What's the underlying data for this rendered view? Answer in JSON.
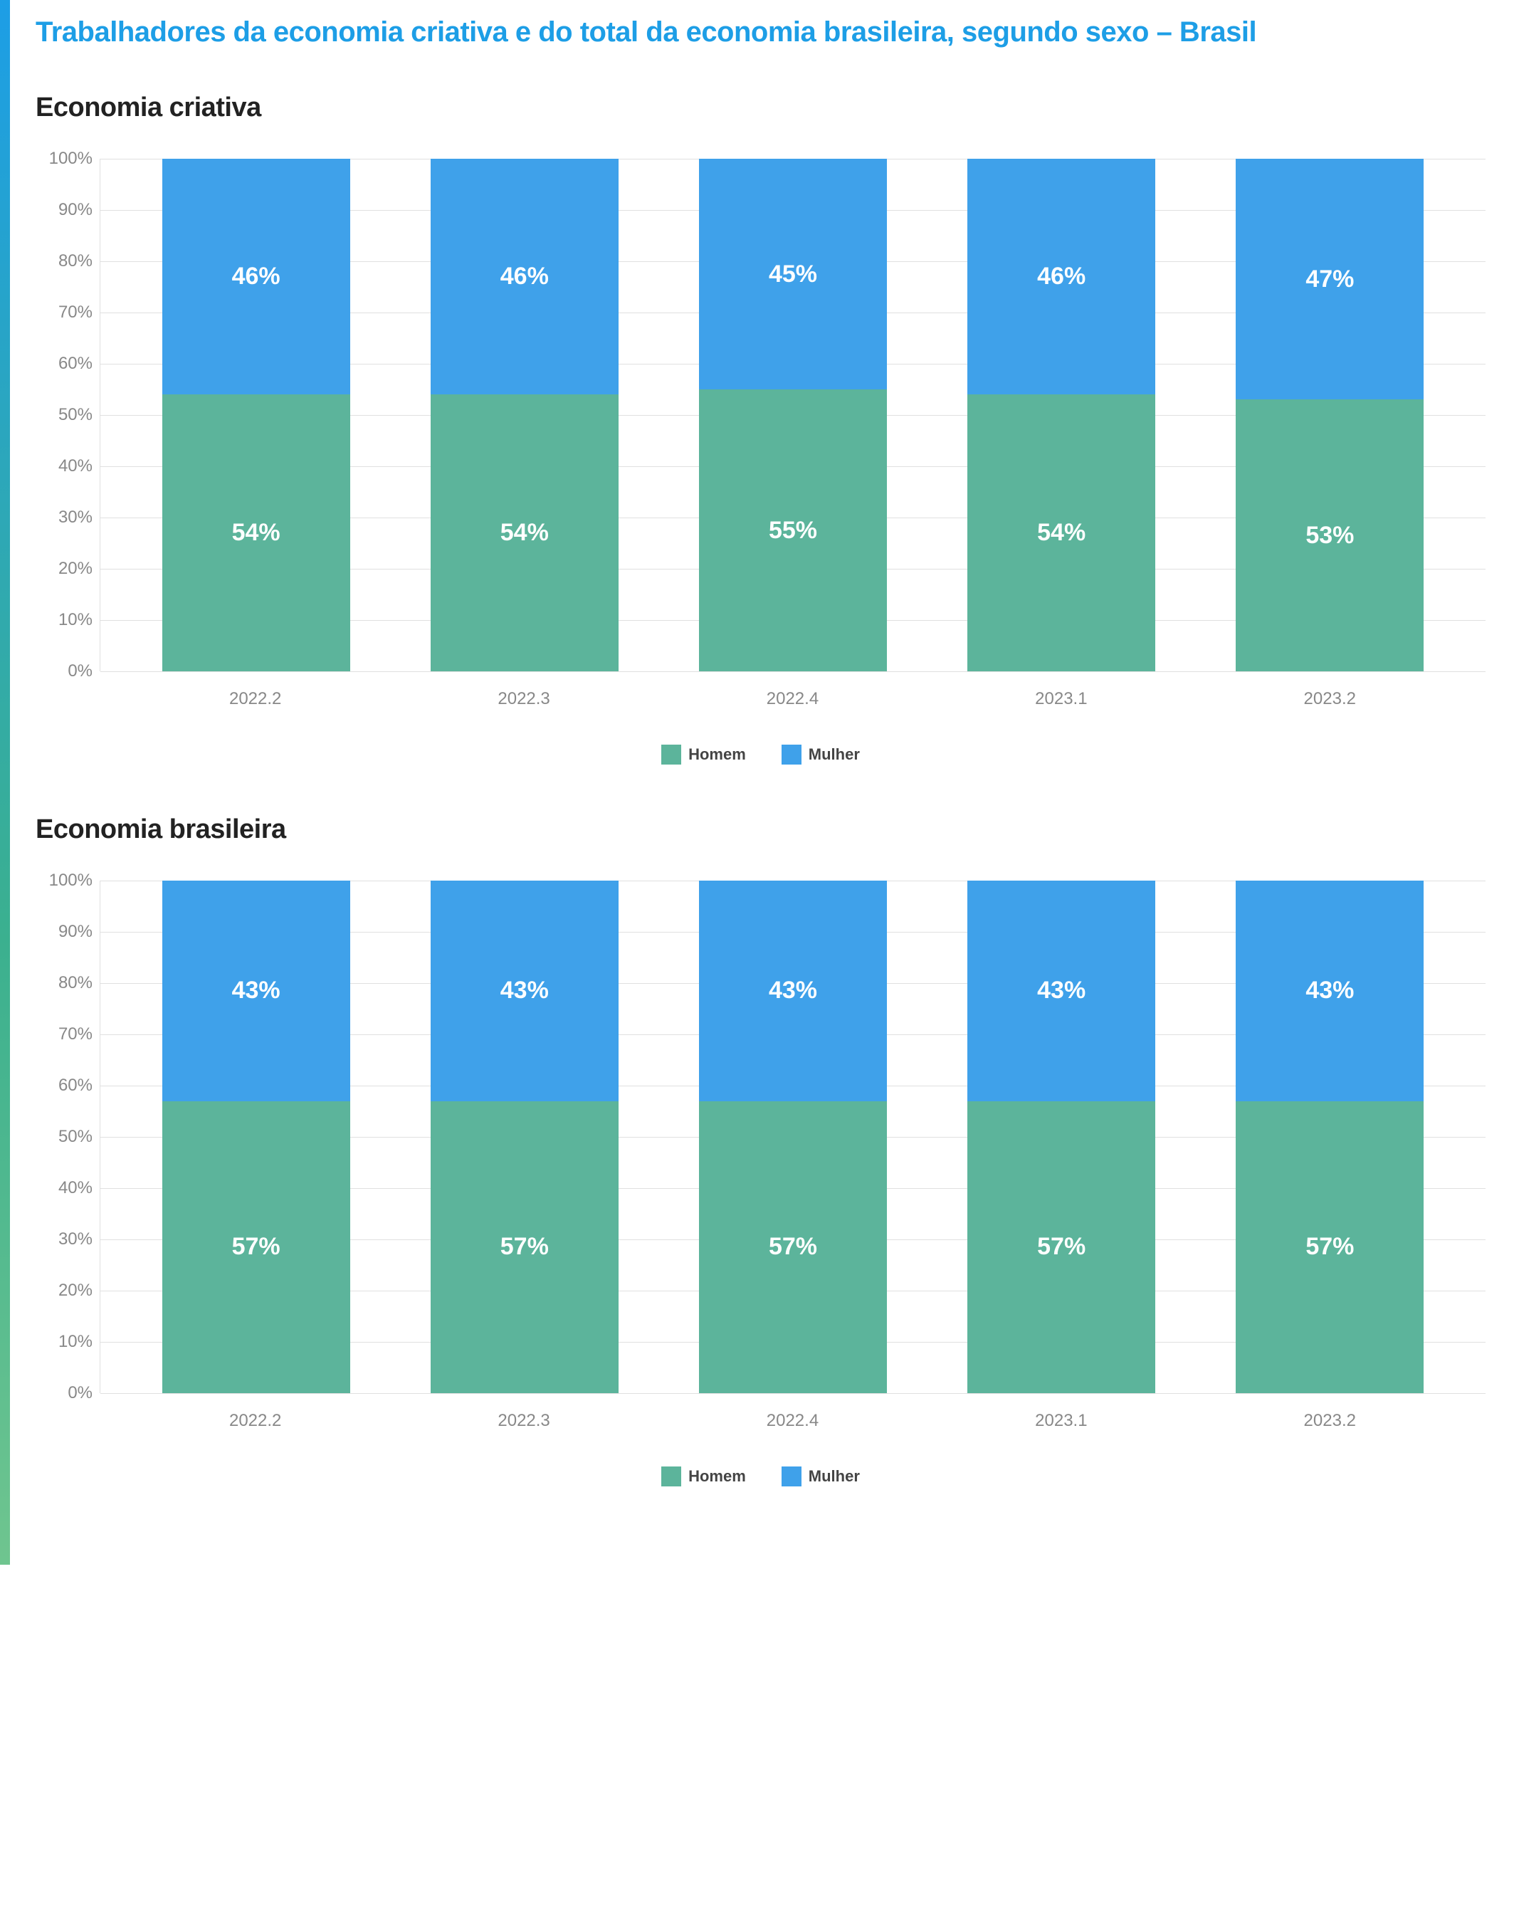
{
  "page_title": "Trabalhadores da economia criativa e do total da economia brasileira, segundo sexo – Brasil",
  "title_color": "#1d9ee6",
  "title_fontsize": 40,
  "subtitle_color": "#222222",
  "subtitle_fontsize": 38,
  "colors": {
    "homem": "#5cb49b",
    "mulher": "#3fa1ea",
    "grid": "#e0e0e0",
    "axis_text": "#888888",
    "value_text": "#ffffff",
    "background": "#ffffff"
  },
  "y_axis": {
    "min": 0,
    "max": 100,
    "step": 10,
    "suffix": "%",
    "fontsize": 24
  },
  "legend": {
    "items": [
      {
        "key": "homem",
        "label": "Homem"
      },
      {
        "key": "mulher",
        "label": "Mulher"
      }
    ],
    "fontsize": 22
  },
  "value_fontsize": 34,
  "x_label_fontsize": 24,
  "charts": [
    {
      "title": "Economia criativa",
      "type": "stacked-bar",
      "categories": [
        "2022.2",
        "2022.3",
        "2022.4",
        "2023.1",
        "2023.2"
      ],
      "series": [
        {
          "key": "homem",
          "values": [
            54,
            54,
            55,
            54,
            53
          ]
        },
        {
          "key": "mulher",
          "values": [
            46,
            46,
            45,
            46,
            47
          ]
        }
      ]
    },
    {
      "title": "Economia brasileira",
      "type": "stacked-bar",
      "categories": [
        "2022.2",
        "2022.3",
        "2022.4",
        "2023.1",
        "2023.2"
      ],
      "series": [
        {
          "key": "homem",
          "values": [
            57,
            57,
            57,
            57,
            57
          ]
        },
        {
          "key": "mulher",
          "values": [
            43,
            43,
            43,
            43,
            43
          ]
        }
      ]
    }
  ]
}
